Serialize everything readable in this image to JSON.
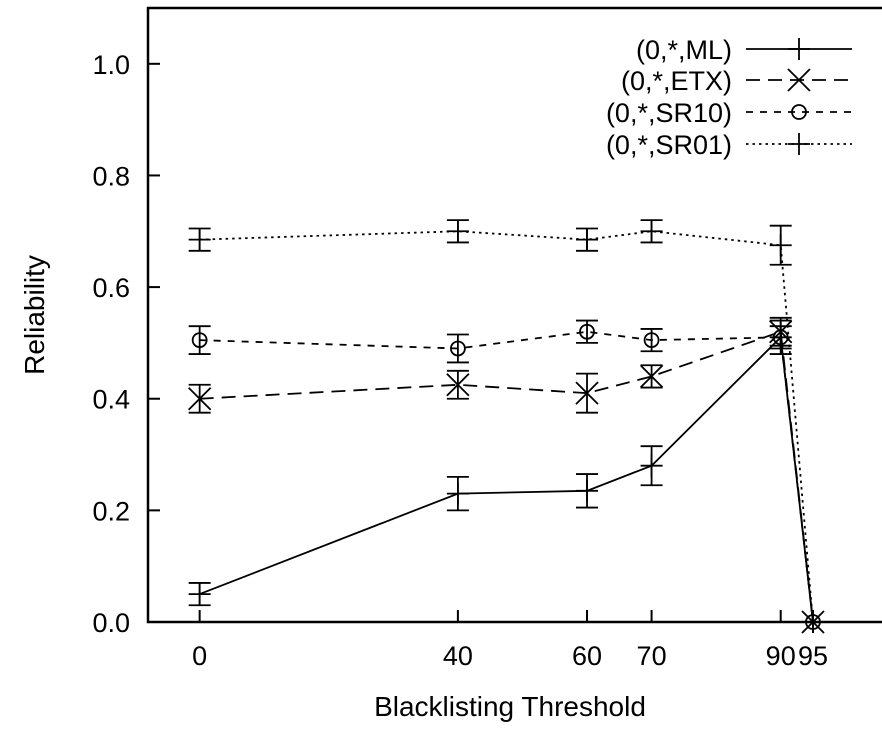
{
  "chart_data": {
    "type": "line",
    "title": "",
    "xlabel": "Blacklisting Threshold",
    "ylabel": "Reliability",
    "x": [
      0,
      40,
      60,
      70,
      90,
      95
    ],
    "x_tick_labels": [
      "0",
      "40",
      "60",
      "70",
      "90",
      "95"
    ],
    "y_ticks": [
      0.0,
      0.2,
      0.4,
      0.6,
      0.8,
      1.0
    ],
    "y_tick_labels": [
      "0.0",
      "0.2",
      "0.4",
      "0.6",
      "0.8",
      "1.0"
    ],
    "xlim": [
      -8,
      106
    ],
    "ylim": [
      0,
      1.1
    ],
    "grid": false,
    "legend_position": "top-right",
    "series": [
      {
        "name": "(0,*,ML)",
        "line_style": "solid",
        "marker": "plus",
        "values": [
          0.05,
          0.23,
          0.235,
          0.28,
          0.51,
          0.0
        ],
        "errors": [
          0.02,
          0.03,
          0.03,
          0.035,
          0.03,
          0.0
        ]
      },
      {
        "name": "(0,*,ETX)",
        "line_style": "dashed",
        "marker": "cross",
        "values": [
          0.4,
          0.425,
          0.41,
          0.44,
          0.52,
          0.0
        ],
        "errors": [
          0.025,
          0.025,
          0.035,
          0.02,
          0.025,
          0.0
        ]
      },
      {
        "name": "(0,*,SR10)",
        "line_style": "short-dashed",
        "marker": "circle",
        "values": [
          0.505,
          0.49,
          0.52,
          0.505,
          0.51,
          0.0
        ],
        "errors": [
          0.025,
          0.025,
          0.02,
          0.02,
          0.02,
          0.0
        ]
      },
      {
        "name": "(0,*,SR01)",
        "line_style": "dotted",
        "marker": "plus",
        "values": [
          0.685,
          0.7,
          0.685,
          0.7,
          0.675,
          0.0
        ],
        "errors": [
          0.02,
          0.02,
          0.02,
          0.02,
          0.035,
          0.0
        ]
      }
    ]
  }
}
